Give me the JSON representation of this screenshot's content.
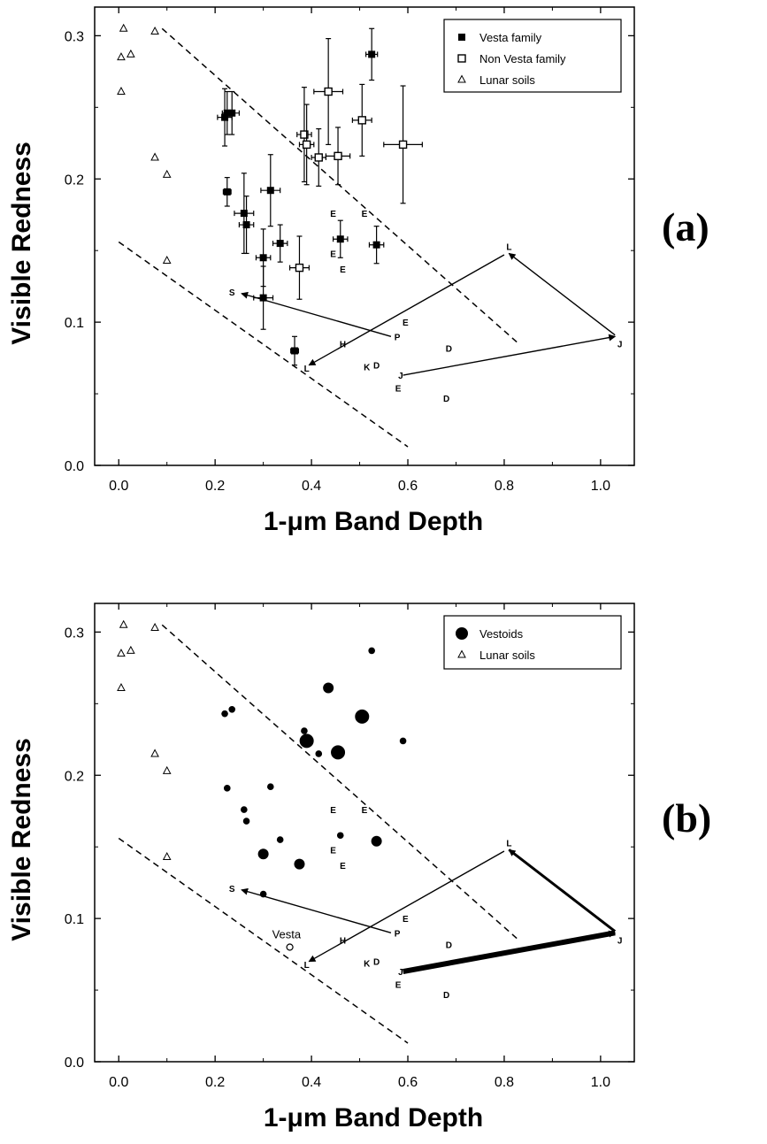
{
  "chart_data": [
    {
      "type": "scatter",
      "panel_label": "(a)",
      "xlabel": "1-μm Band Depth",
      "ylabel": "Visible Redness",
      "xlim": [
        -0.05,
        1.07
      ],
      "ylim": [
        0.0,
        0.32
      ],
      "xticks": [
        0.0,
        0.2,
        0.4,
        0.6,
        0.8,
        1.0
      ],
      "yticks": [
        0.0,
        0.1,
        0.2,
        0.3
      ],
      "xtick_labels": [
        "0.0",
        "0.2",
        "0.4",
        "0.6",
        "0.8",
        "1.0"
      ],
      "ytick_labels": [
        "0.0",
        "0.1",
        "0.2",
        "0.3"
      ],
      "grid": false,
      "legend_position": "top-right",
      "series": [
        {
          "name": "Vesta family",
          "marker": "filled-square",
          "points": [
            {
              "x": 0.22,
              "y": 0.243,
              "xerr": 0.015,
              "yerr": 0.02
            },
            {
              "x": 0.225,
              "y": 0.246,
              "xerr": 0.01,
              "yerr": 0.015
            },
            {
              "x": 0.235,
              "y": 0.246,
              "xerr": 0.015,
              "yerr": 0.015
            },
            {
              "x": 0.225,
              "y": 0.191,
              "xerr": 0.008,
              "yerr": 0.01
            },
            {
              "x": 0.26,
              "y": 0.176,
              "xerr": 0.02,
              "yerr": 0.028
            },
            {
              "x": 0.265,
              "y": 0.168,
              "xerr": 0.015,
              "yerr": 0.02
            },
            {
              "x": 0.315,
              "y": 0.192,
              "xerr": 0.02,
              "yerr": 0.025
            },
            {
              "x": 0.335,
              "y": 0.155,
              "xerr": 0.015,
              "yerr": 0.013
            },
            {
              "x": 0.3,
              "y": 0.145,
              "xerr": 0.015,
              "yerr": 0.02
            },
            {
              "x": 0.3,
              "y": 0.117,
              "xerr": 0.02,
              "yerr": 0.022
            },
            {
              "x": 0.365,
              "y": 0.08,
              "xerr": 0.008,
              "yerr": 0.01
            },
            {
              "x": 0.46,
              "y": 0.158,
              "xerr": 0.015,
              "yerr": 0.013
            },
            {
              "x": 0.535,
              "y": 0.154,
              "xerr": 0.015,
              "yerr": 0.013
            },
            {
              "x": 0.525,
              "y": 0.287,
              "xerr": 0.012,
              "yerr": 0.018
            }
          ]
        },
        {
          "name": "Non Vesta family",
          "marker": "open-square",
          "points": [
            {
              "x": 0.385,
              "y": 0.231,
              "xerr": 0.015,
              "yerr": 0.033
            },
            {
              "x": 0.39,
              "y": 0.224,
              "xerr": 0.015,
              "yerr": 0.028
            },
            {
              "x": 0.415,
              "y": 0.215,
              "xerr": 0.015,
              "yerr": 0.02
            },
            {
              "x": 0.435,
              "y": 0.261,
              "xerr": 0.03,
              "yerr": 0.037
            },
            {
              "x": 0.455,
              "y": 0.216,
              "xerr": 0.025,
              "yerr": 0.02
            },
            {
              "x": 0.505,
              "y": 0.241,
              "xerr": 0.02,
              "yerr": 0.025
            },
            {
              "x": 0.59,
              "y": 0.224,
              "xerr": 0.04,
              "yerr": 0.041
            },
            {
              "x": 0.375,
              "y": 0.138,
              "xerr": 0.02,
              "yerr": 0.022
            }
          ]
        },
        {
          "name": "Lunar soils",
          "marker": "open-triangle",
          "points": [
            {
              "x": 0.01,
              "y": 0.305
            },
            {
              "x": 0.005,
              "y": 0.285
            },
            {
              "x": 0.025,
              "y": 0.287
            },
            {
              "x": 0.005,
              "y": 0.261
            },
            {
              "x": 0.075,
              "y": 0.303
            },
            {
              "x": 0.075,
              "y": 0.215
            },
            {
              "x": 0.1,
              "y": 0.203
            },
            {
              "x": 0.1,
              "y": 0.143
            }
          ]
        }
      ],
      "letter_markers": [
        {
          "text": "E",
          "x": 0.445,
          "y": 0.176
        },
        {
          "text": "E",
          "x": 0.51,
          "y": 0.176
        },
        {
          "text": "E",
          "x": 0.445,
          "y": 0.148
        },
        {
          "text": "E",
          "x": 0.465,
          "y": 0.137
        },
        {
          "text": "E",
          "x": 0.595,
          "y": 0.1
        },
        {
          "text": "E",
          "x": 0.58,
          "y": 0.054
        },
        {
          "text": "S",
          "x": 0.235,
          "y": 0.121
        },
        {
          "text": "P",
          "x": 0.578,
          "y": 0.09
        },
        {
          "text": "H",
          "x": 0.465,
          "y": 0.085
        },
        {
          "text": "L",
          "x": 0.39,
          "y": 0.068
        },
        {
          "text": "K",
          "x": 0.515,
          "y": 0.069
        },
        {
          "text": "D",
          "x": 0.535,
          "y": 0.07
        },
        {
          "text": "D",
          "x": 0.685,
          "y": 0.082
        },
        {
          "text": "D",
          "x": 0.68,
          "y": 0.047
        },
        {
          "text": "J",
          "x": 0.585,
          "y": 0.063
        },
        {
          "text": "L",
          "x": 0.81,
          "y": 0.153
        },
        {
          "text": "J",
          "x": 1.04,
          "y": 0.085
        }
      ],
      "arrows": [
        {
          "from": [
            0.565,
            0.09
          ],
          "to": [
            0.255,
            0.12
          ],
          "weight": "thin"
        },
        {
          "from": [
            0.8,
            0.147
          ],
          "to": [
            0.395,
            0.07
          ],
          "weight": "thin"
        },
        {
          "from": [
            1.03,
            0.091
          ],
          "to": [
            0.81,
            0.148
          ],
          "weight": "thin"
        },
        {
          "from": [
            0.59,
            0.063
          ],
          "to": [
            1.03,
            0.09
          ],
          "weight": "thin"
        }
      ],
      "dashed_lines": [
        {
          "from": [
            0.09,
            0.305
          ],
          "to": [
            0.83,
            0.085
          ]
        },
        {
          "from": [
            0.0,
            0.156
          ],
          "to": [
            0.6,
            0.013
          ]
        }
      ]
    },
    {
      "type": "scatter",
      "panel_label": "(b)",
      "xlabel": "1-μm Band Depth",
      "ylabel": "Visible Redness",
      "xlim": [
        -0.05,
        1.07
      ],
      "ylim": [
        0.0,
        0.32
      ],
      "xticks": [
        0.0,
        0.2,
        0.4,
        0.6,
        0.8,
        1.0
      ],
      "yticks": [
        0.0,
        0.1,
        0.2,
        0.3
      ],
      "xtick_labels": [
        "0.0",
        "0.2",
        "0.4",
        "0.6",
        "0.8",
        "1.0"
      ],
      "ytick_labels": [
        "0.0",
        "0.1",
        "0.2",
        "0.3"
      ],
      "grid": false,
      "legend_position": "top-right",
      "series": [
        {
          "name": "Vestoids",
          "marker": "filled-circle",
          "points": [
            {
              "x": 0.22,
              "y": 0.243,
              "size": "small"
            },
            {
              "x": 0.235,
              "y": 0.246,
              "size": "small"
            },
            {
              "x": 0.225,
              "y": 0.191,
              "size": "small"
            },
            {
              "x": 0.26,
              "y": 0.176,
              "size": "small"
            },
            {
              "x": 0.265,
              "y": 0.168,
              "size": "small"
            },
            {
              "x": 0.315,
              "y": 0.192,
              "size": "small"
            },
            {
              "x": 0.335,
              "y": 0.155,
              "size": "small"
            },
            {
              "x": 0.3,
              "y": 0.145,
              "size": "medium"
            },
            {
              "x": 0.3,
              "y": 0.117,
              "size": "small"
            },
            {
              "x": 0.46,
              "y": 0.158,
              "size": "small"
            },
            {
              "x": 0.535,
              "y": 0.154,
              "size": "medium"
            },
            {
              "x": 0.525,
              "y": 0.287,
              "size": "small"
            },
            {
              "x": 0.385,
              "y": 0.231,
              "size": "small"
            },
            {
              "x": 0.39,
              "y": 0.224,
              "size": "large"
            },
            {
              "x": 0.415,
              "y": 0.215,
              "size": "small"
            },
            {
              "x": 0.435,
              "y": 0.261,
              "size": "medium"
            },
            {
              "x": 0.455,
              "y": 0.216,
              "size": "large"
            },
            {
              "x": 0.505,
              "y": 0.241,
              "size": "large"
            },
            {
              "x": 0.59,
              "y": 0.224,
              "size": "small"
            },
            {
              "x": 0.375,
              "y": 0.138,
              "size": "medium"
            }
          ]
        },
        {
          "name": "Lunar soils",
          "marker": "open-triangle",
          "points": [
            {
              "x": 0.01,
              "y": 0.305
            },
            {
              "x": 0.005,
              "y": 0.285
            },
            {
              "x": 0.025,
              "y": 0.287
            },
            {
              "x": 0.005,
              "y": 0.261
            },
            {
              "x": 0.075,
              "y": 0.303
            },
            {
              "x": 0.075,
              "y": 0.215
            },
            {
              "x": 0.1,
              "y": 0.203
            },
            {
              "x": 0.1,
              "y": 0.143
            }
          ]
        }
      ],
      "vesta_point": {
        "label": "Vesta",
        "x": 0.355,
        "y": 0.08
      },
      "letter_markers": [
        {
          "text": "E",
          "x": 0.445,
          "y": 0.176
        },
        {
          "text": "E",
          "x": 0.51,
          "y": 0.176
        },
        {
          "text": "E",
          "x": 0.445,
          "y": 0.148
        },
        {
          "text": "E",
          "x": 0.465,
          "y": 0.137
        },
        {
          "text": "E",
          "x": 0.595,
          "y": 0.1
        },
        {
          "text": "E",
          "x": 0.58,
          "y": 0.054
        },
        {
          "text": "S",
          "x": 0.235,
          "y": 0.121
        },
        {
          "text": "P",
          "x": 0.578,
          "y": 0.09
        },
        {
          "text": "H",
          "x": 0.465,
          "y": 0.085
        },
        {
          "text": "L",
          "x": 0.39,
          "y": 0.068
        },
        {
          "text": "K",
          "x": 0.515,
          "y": 0.069
        },
        {
          "text": "D",
          "x": 0.535,
          "y": 0.07
        },
        {
          "text": "D",
          "x": 0.685,
          "y": 0.082
        },
        {
          "text": "D",
          "x": 0.68,
          "y": 0.047
        },
        {
          "text": "J",
          "x": 0.585,
          "y": 0.063
        },
        {
          "text": "L",
          "x": 0.81,
          "y": 0.153
        },
        {
          "text": "J",
          "x": 1.04,
          "y": 0.085
        }
      ],
      "arrows": [
        {
          "from": [
            0.565,
            0.09
          ],
          "to": [
            0.255,
            0.12
          ],
          "weight": "thin"
        },
        {
          "from": [
            0.8,
            0.147
          ],
          "to": [
            0.395,
            0.07
          ],
          "weight": "thin"
        },
        {
          "from": [
            1.03,
            0.091
          ],
          "to": [
            0.81,
            0.148
          ],
          "weight": "medium"
        },
        {
          "from": [
            0.59,
            0.063
          ],
          "to": [
            1.03,
            0.09
          ],
          "weight": "thick"
        }
      ],
      "dashed_lines": [
        {
          "from": [
            0.09,
            0.305
          ],
          "to": [
            0.83,
            0.085
          ]
        },
        {
          "from": [
            0.0,
            0.156
          ],
          "to": [
            0.6,
            0.013
          ]
        }
      ]
    }
  ]
}
